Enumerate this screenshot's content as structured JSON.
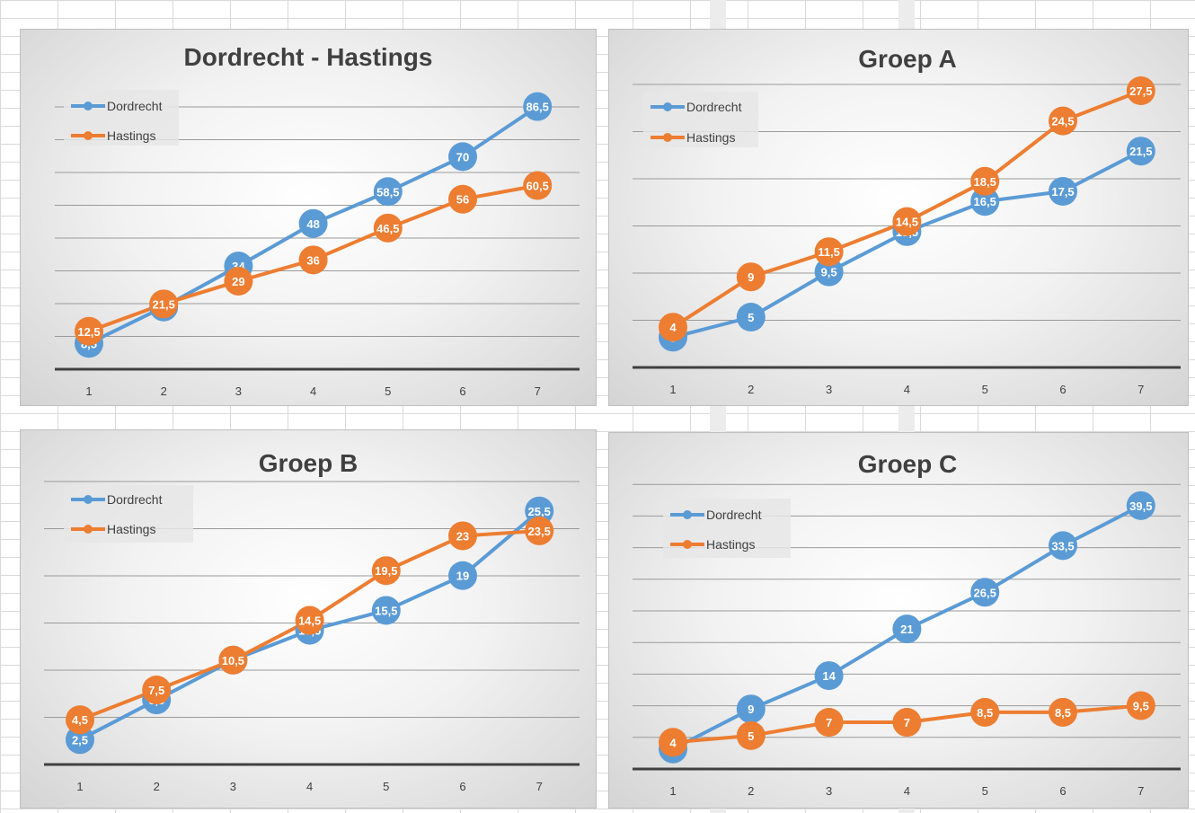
{
  "colors": {
    "dordrecht": "#5b9bd5",
    "hastings": "#ed7d31",
    "gridline": "#9a9a9a",
    "axis": "#404040",
    "legend_bg": "#e6e6e6"
  },
  "chart_data": [
    {
      "type": "line",
      "title": "Dordrecht - Hastings",
      "categories": [
        "1",
        "2",
        "3",
        "4",
        "5",
        "6",
        "7"
      ],
      "legend_position": "top-left",
      "grid": true,
      "ylim": [
        0,
        100
      ],
      "series": [
        {
          "name": "Dordrecht",
          "color_key": "dordrecht",
          "values": [
            8.5,
            20.5,
            34,
            48,
            58.5,
            70,
            86.5
          ],
          "labels": [
            "8,5",
            "20,5",
            "34",
            "48",
            "58,5",
            "70",
            "86,5"
          ]
        },
        {
          "name": "Hastings",
          "color_key": "hastings",
          "values": [
            12.5,
            21.5,
            29,
            36,
            46.5,
            56,
            60.5
          ],
          "labels": [
            "12,5",
            "21,5",
            "29",
            "36",
            "46,5",
            "56",
            "60,5"
          ]
        }
      ]
    },
    {
      "type": "line",
      "title": "Groep A",
      "categories": [
        "1",
        "2",
        "3",
        "4",
        "5",
        "6",
        "7"
      ],
      "legend_position": "top-left",
      "grid": true,
      "ylim": [
        0,
        30
      ],
      "series": [
        {
          "name": "Dordrecht",
          "color_key": "dordrecht",
          "values": [
            3,
            5,
            9.5,
            13.5,
            16.5,
            17.5,
            21.5
          ],
          "labels": [
            "3",
            "5",
            "9,5",
            "13,5",
            "16,5",
            "17,5",
            "21,5"
          ]
        },
        {
          "name": "Hastings",
          "color_key": "hastings",
          "values": [
            4,
            9,
            11.5,
            14.5,
            18.5,
            24.5,
            27.5
          ],
          "labels": [
            "4",
            "9",
            "11,5",
            "14,5",
            "18,5",
            "24,5",
            "27,5"
          ]
        }
      ]
    },
    {
      "type": "line",
      "title": "Groep B",
      "categories": [
        "1",
        "2",
        "3",
        "4",
        "5",
        "6",
        "7"
      ],
      "legend_position": "top-left",
      "grid": true,
      "ylim": [
        0,
        30
      ],
      "series": [
        {
          "name": "Dordrecht",
          "color_key": "dordrecht",
          "values": [
            2.5,
            6.5,
            10.5,
            13.5,
            15.5,
            19,
            25.5
          ],
          "labels": [
            "2,5",
            "6,5",
            "10,5",
            "13,5",
            "15,5",
            "19",
            "25,5"
          ]
        },
        {
          "name": "Hastings",
          "color_key": "hastings",
          "values": [
            4.5,
            7.5,
            10.5,
            14.5,
            19.5,
            23,
            23.5
          ],
          "labels": [
            "4,5",
            "7,5",
            "10,5",
            "14,5",
            "19,5",
            "23",
            "23,5"
          ]
        }
      ]
    },
    {
      "type": "line",
      "title": "Groep C",
      "categories": [
        "1",
        "2",
        "3",
        "4",
        "5",
        "6",
        "7"
      ],
      "legend_position": "top-left",
      "grid": true,
      "ylim": [
        0,
        45
      ],
      "series": [
        {
          "name": "Dordrecht",
          "color_key": "dordrecht",
          "values": [
            3,
            9,
            14,
            21,
            26.5,
            33.5,
            39.5
          ],
          "labels": [
            "3",
            "9",
            "14",
            "21",
            "26,5",
            "33,5",
            "39,5"
          ]
        },
        {
          "name": "Hastings",
          "color_key": "hastings",
          "values": [
            4,
            5,
            7,
            7,
            8.5,
            8.5,
            9.5
          ],
          "labels": [
            "4",
            "5",
            "7",
            "7",
            "8,5",
            "8,5",
            "9,5"
          ]
        }
      ]
    }
  ]
}
